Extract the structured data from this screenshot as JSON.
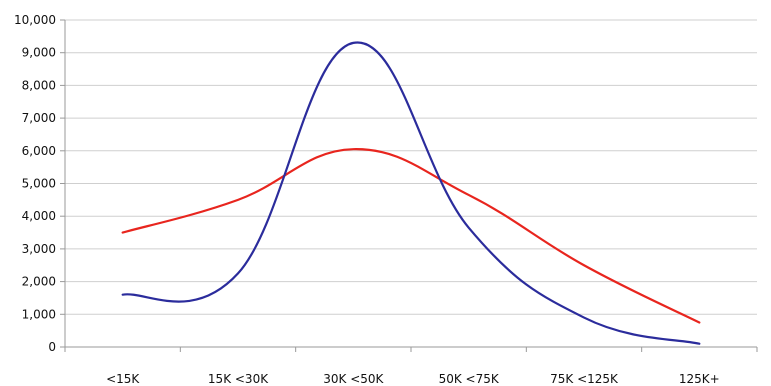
{
  "chart_data": {
    "type": "line",
    "title": "",
    "xlabel": "",
    "ylabel": "",
    "categories": [
      "<15K",
      "15K <30K",
      "30K <50K",
      "50K <75K",
      "75K <125K",
      "125K+"
    ],
    "ylim": [
      0,
      10000
    ],
    "yticks": [
      0,
      1000,
      2000,
      3000,
      4000,
      5000,
      6000,
      7000,
      8000,
      9000,
      10000
    ],
    "ytick_labels": [
      "0",
      "1,000",
      "2,000",
      "3,000",
      "4,000",
      "5,000",
      "6,000",
      "7,000",
      "8,000",
      "9,000",
      "10,000"
    ],
    "grid": true,
    "legend": "none",
    "series": [
      {
        "color": "#e8251e",
        "values": [
          3500,
          4500,
          6050,
          4650,
          2500,
          750
        ]
      },
      {
        "color": "#2b2c9c",
        "values": [
          1600,
          2250,
          9300,
          3650,
          900,
          100
        ]
      }
    ]
  }
}
